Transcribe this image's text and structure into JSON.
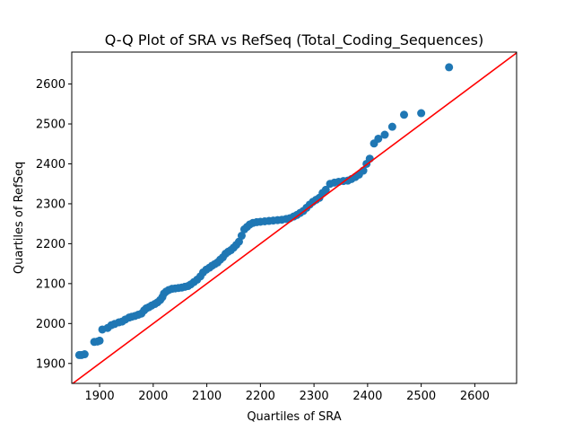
{
  "chart_data": {
    "type": "scatter",
    "title": "Q-Q Plot of SRA vs RefSeq (Total_Coding_Sequences)",
    "xlabel": "Quartiles of SRA",
    "ylabel": "Quartiles of RefSeq",
    "xlim": [
      1848,
      2678
    ],
    "ylim": [
      1850,
      2680
    ],
    "xticks": [
      1900,
      2000,
      2100,
      2200,
      2300,
      2400,
      2500,
      2600
    ],
    "yticks": [
      1900,
      2000,
      2100,
      2200,
      2300,
      2400,
      2500,
      2600
    ],
    "grid": false,
    "legend": "none",
    "marker_color": "#1f77b4",
    "reference_line": {
      "slope": 1,
      "intercept": 0,
      "color": "#ff0000"
    },
    "points": [
      [
        1862,
        1921
      ],
      [
        1866,
        1921
      ],
      [
        1872,
        1923
      ],
      [
        1890,
        1954
      ],
      [
        1896,
        1955
      ],
      [
        1900,
        1957
      ],
      [
        1905,
        1985
      ],
      [
        1915,
        1989
      ],
      [
        1922,
        1996
      ],
      [
        1928,
        1999
      ],
      [
        1936,
        2003
      ],
      [
        1942,
        2005
      ],
      [
        1948,
        2010
      ],
      [
        1955,
        2015
      ],
      [
        1960,
        2017
      ],
      [
        1966,
        2019
      ],
      [
        1972,
        2022
      ],
      [
        1978,
        2025
      ],
      [
        1983,
        2033
      ],
      [
        1987,
        2038
      ],
      [
        1992,
        2041
      ],
      [
        1997,
        2045
      ],
      [
        2003,
        2049
      ],
      [
        2008,
        2053
      ],
      [
        2013,
        2059
      ],
      [
        2017,
        2066
      ],
      [
        2020,
        2075
      ],
      [
        2024,
        2080
      ],
      [
        2029,
        2084
      ],
      [
        2035,
        2087
      ],
      [
        2041,
        2088
      ],
      [
        2047,
        2089
      ],
      [
        2053,
        2090
      ],
      [
        2059,
        2092
      ],
      [
        2065,
        2094
      ],
      [
        2070,
        2098
      ],
      [
        2076,
        2104
      ],
      [
        2082,
        2110
      ],
      [
        2088,
        2118
      ],
      [
        2093,
        2128
      ],
      [
        2099,
        2135
      ],
      [
        2105,
        2140
      ],
      [
        2110,
        2145
      ],
      [
        2115,
        2149
      ],
      [
        2120,
        2153
      ],
      [
        2125,
        2160
      ],
      [
        2130,
        2166
      ],
      [
        2135,
        2175
      ],
      [
        2140,
        2180
      ],
      [
        2145,
        2184
      ],
      [
        2150,
        2190
      ],
      [
        2155,
        2197
      ],
      [
        2160,
        2205
      ],
      [
        2165,
        2220
      ],
      [
        2170,
        2236
      ],
      [
        2175,
        2242
      ],
      [
        2180,
        2248
      ],
      [
        2186,
        2252
      ],
      [
        2193,
        2254
      ],
      [
        2200,
        2255
      ],
      [
        2208,
        2256
      ],
      [
        2216,
        2257
      ],
      [
        2224,
        2258
      ],
      [
        2232,
        2259
      ],
      [
        2240,
        2260
      ],
      [
        2248,
        2262
      ],
      [
        2255,
        2264
      ],
      [
        2262,
        2268
      ],
      [
        2268,
        2272
      ],
      [
        2274,
        2277
      ],
      [
        2280,
        2282
      ],
      [
        2286,
        2290
      ],
      [
        2292,
        2298
      ],
      [
        2298,
        2305
      ],
      [
        2304,
        2310
      ],
      [
        2310,
        2315
      ],
      [
        2316,
        2327
      ],
      [
        2322,
        2335
      ],
      [
        2330,
        2350
      ],
      [
        2338,
        2353
      ],
      [
        2346,
        2355
      ],
      [
        2355,
        2357
      ],
      [
        2363,
        2358
      ],
      [
        2370,
        2362
      ],
      [
        2377,
        2367
      ],
      [
        2384,
        2373
      ],
      [
        2392,
        2383
      ],
      [
        2398,
        2400
      ],
      [
        2404,
        2413
      ],
      [
        2412,
        2451
      ],
      [
        2420,
        2463
      ],
      [
        2432,
        2473
      ],
      [
        2446,
        2493
      ],
      [
        2468,
        2523
      ],
      [
        2500,
        2527
      ],
      [
        2552,
        2642
      ]
    ]
  }
}
